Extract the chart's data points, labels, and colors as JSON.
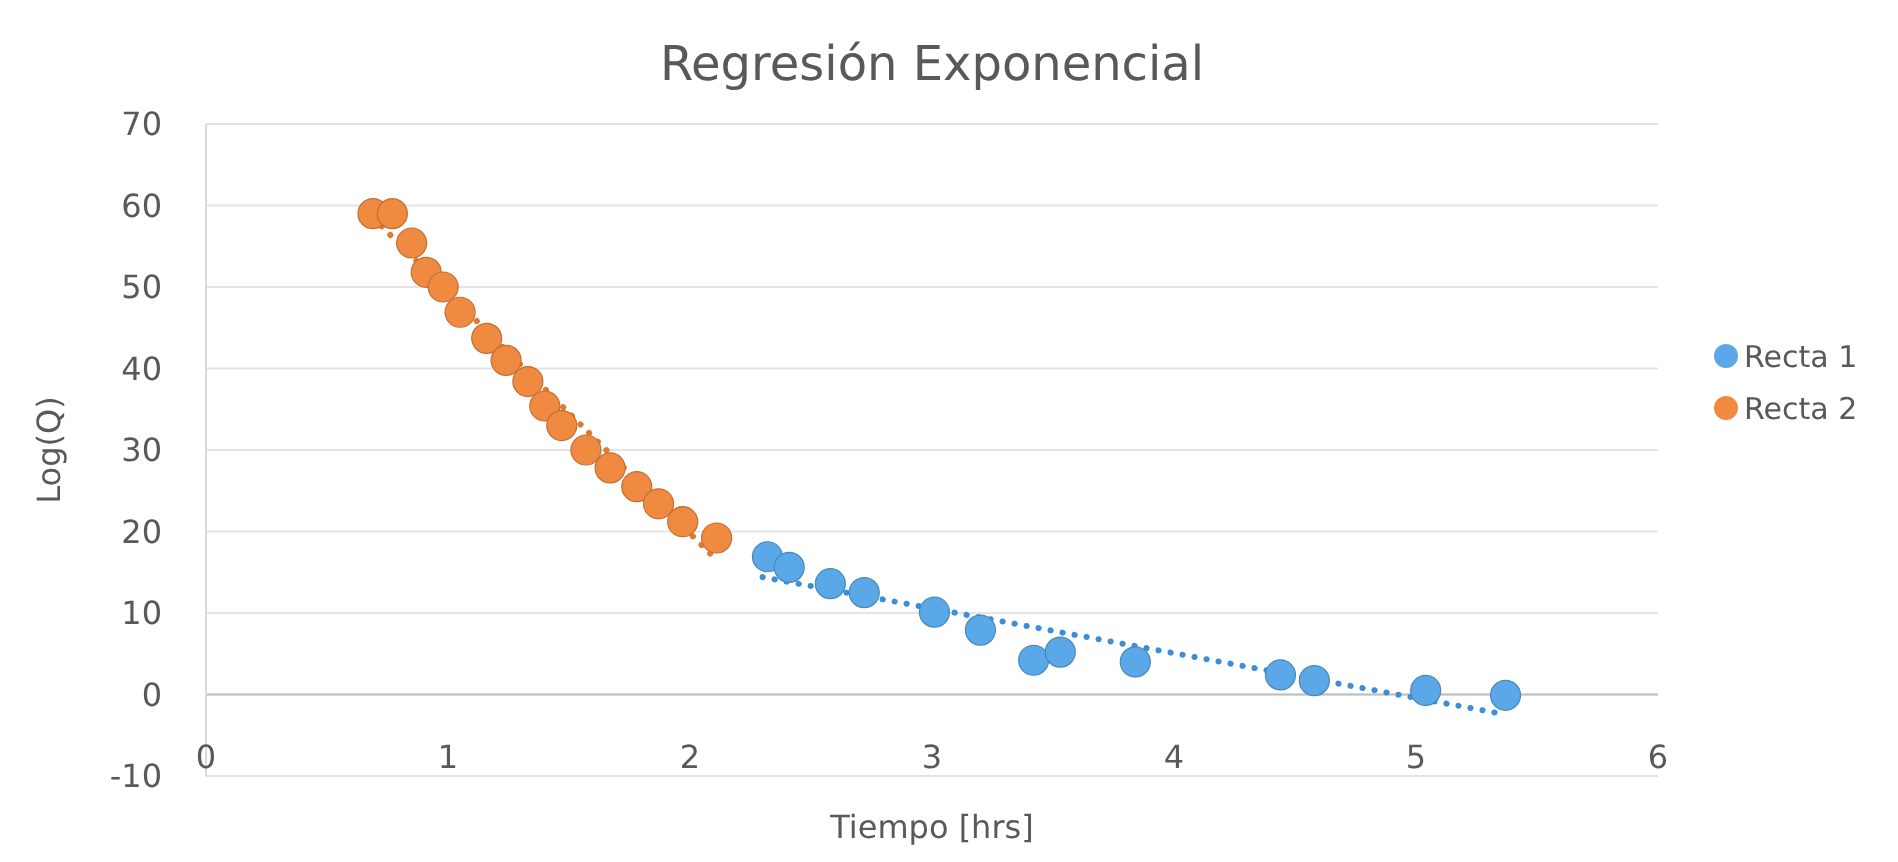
{
  "chart_data": {
    "type": "scatter",
    "title": "Regresión Exponencial",
    "xlabel": "Tiempo [hrs]",
    "ylabel": "Log(Q)",
    "xlim": [
      0,
      6
    ],
    "xticks": [
      0,
      1,
      2,
      3,
      4,
      5,
      6
    ],
    "ylim": [
      -10,
      70
    ],
    "yticks": [
      -10,
      0,
      10,
      20,
      30,
      40,
      50,
      60,
      70
    ],
    "grid": "y",
    "legend": "right",
    "marker": "circle",
    "series": [
      {
        "name": "Recta 1",
        "color": "#5aa8e8",
        "x": [
          2.32,
          2.41,
          2.58,
          2.72,
          3.01,
          3.2,
          3.42,
          3.53,
          3.84,
          4.44,
          4.58,
          5.04,
          5.37
        ],
        "values": [
          16.9,
          15.6,
          13.6,
          12.5,
          10.1,
          7.9,
          4.2,
          5.2,
          4.0,
          2.4,
          1.7,
          0.5,
          -0.1
        ]
      },
      {
        "name": "Recta 2",
        "color": "#f08a40",
        "x": [
          0.69,
          0.77,
          0.85,
          0.91,
          0.98,
          1.05,
          1.16,
          1.24,
          1.33,
          1.4,
          1.47,
          1.57,
          1.67,
          1.78,
          1.87,
          1.97,
          2.11
        ],
        "values": [
          59,
          59,
          55.4,
          51.8,
          50,
          46.9,
          43.7,
          41,
          38.4,
          35.4,
          33,
          30,
          27.8,
          25.5,
          23.4,
          21.2,
          19.2
        ]
      },
      {
        "type": "line",
        "color": "#3b8fd8",
        "line_style": "dotted",
        "marker": "none",
        "x": [
          2.3,
          5.36
        ],
        "values": [
          14.4,
          -2.4
        ]
      },
      {
        "type": "line",
        "color": "#e07a30",
        "line_style": "dotted",
        "marker": "none",
        "x": [
          0.69,
          2.11
        ],
        "values": [
          58.5,
          16.5
        ]
      }
    ]
  }
}
